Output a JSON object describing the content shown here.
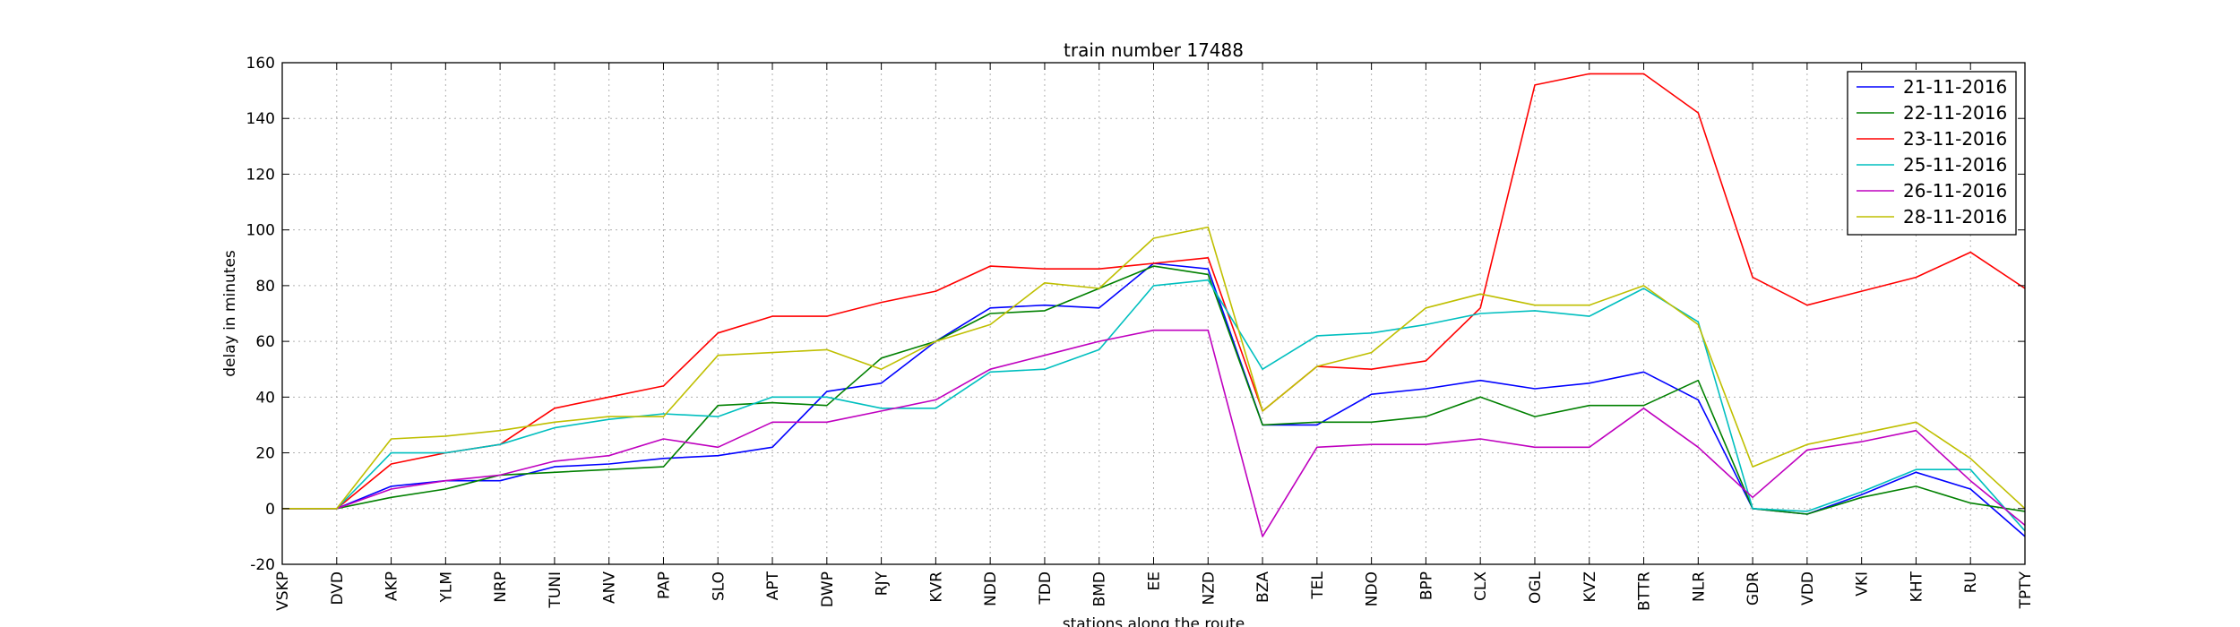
{
  "chart_data": {
    "type": "line",
    "title": "train number 17488",
    "xlabel": "stations along the route",
    "ylabel": "delay in minutes",
    "ylim": [
      -20,
      160
    ],
    "yticks": [
      -20,
      0,
      20,
      40,
      60,
      80,
      100,
      120,
      140,
      160
    ],
    "grid": true,
    "legend_position": "top-right",
    "categories": [
      "VSKP",
      "DVD",
      "AKP",
      "YLM",
      "NRP",
      "TUNI",
      "ANV",
      "PAP",
      "SLO",
      "APT",
      "DWP",
      "RJY",
      "KVR",
      "NDD",
      "TDD",
      "BMD",
      "EE",
      "NZD",
      "BZA",
      "TEL",
      "NDO",
      "BPP",
      "CLX",
      "OGL",
      "KVZ",
      "BTTR",
      "NLR",
      "GDR",
      "VDD",
      "VKI",
      "KHT",
      "RU",
      "TPTY"
    ],
    "series": [
      {
        "name": "21-11-2016",
        "color": "#0000ff",
        "values": [
          0,
          0,
          8,
          10,
          10,
          15,
          16,
          18,
          19,
          22,
          42,
          45,
          60,
          72,
          73,
          72,
          88,
          86,
          30,
          30,
          41,
          43,
          46,
          43,
          45,
          49,
          39,
          0,
          -2,
          5,
          13,
          7,
          -10
        ]
      },
      {
        "name": "22-11-2016",
        "color": "#008000",
        "values": [
          0,
          0,
          4,
          7,
          12,
          13,
          14,
          15,
          37,
          38,
          37,
          54,
          60,
          70,
          71,
          79,
          87,
          84,
          30,
          31,
          31,
          33,
          40,
          33,
          37,
          37,
          46,
          0,
          -2,
          4,
          8,
          2,
          -1
        ]
      },
      {
        "name": "23-11-2016",
        "color": "#ff0000",
        "values": [
          0,
          0,
          16,
          20,
          23,
          36,
          40,
          44,
          63,
          69,
          69,
          74,
          78,
          87,
          86,
          86,
          88,
          90,
          35,
          51,
          50,
          53,
          72,
          152,
          156,
          156,
          142,
          83,
          73,
          78,
          83,
          92,
          79
        ]
      },
      {
        "name": "25-11-2016",
        "color": "#00bfbf",
        "values": [
          0,
          0,
          20,
          20,
          23,
          29,
          32,
          34,
          33,
          40,
          40,
          36,
          36,
          49,
          50,
          57,
          80,
          82,
          50,
          62,
          63,
          66,
          70,
          71,
          69,
          79,
          67,
          0,
          -1,
          6,
          14,
          14,
          -8
        ]
      },
      {
        "name": "26-11-2016",
        "color": "#bf00bf",
        "values": [
          0,
          0,
          7,
          10,
          12,
          17,
          19,
          25,
          22,
          31,
          31,
          35,
          39,
          50,
          55,
          60,
          64,
          64,
          -10,
          22,
          23,
          23,
          25,
          22,
          22,
          36,
          22,
          4,
          21,
          24,
          28,
          10,
          -6
        ]
      },
      {
        "name": "28-11-2016",
        "color": "#bfbf00",
        "values": [
          0,
          0,
          25,
          26,
          28,
          31,
          33,
          33,
          55,
          56,
          57,
          50,
          60,
          66,
          81,
          79,
          97,
          101,
          35,
          51,
          56,
          72,
          77,
          73,
          73,
          80,
          66,
          15,
          23,
          27,
          31,
          18,
          0
        ]
      }
    ]
  }
}
